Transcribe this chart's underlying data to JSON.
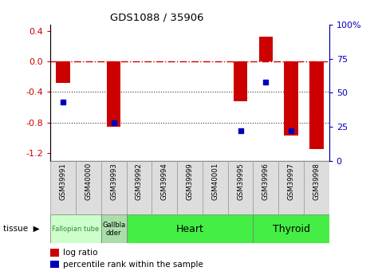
{
  "title": "GDS1088 / 35906",
  "samples": [
    "GSM39991",
    "GSM40000",
    "GSM39993",
    "GSM39992",
    "GSM39994",
    "GSM39999",
    "GSM40001",
    "GSM39995",
    "GSM39996",
    "GSM39997",
    "GSM39998"
  ],
  "log_ratios": [
    -0.28,
    0.0,
    -0.85,
    0.0,
    0.0,
    0.0,
    0.0,
    -0.52,
    0.32,
    -0.97,
    -1.15
  ],
  "percentile_ranks": [
    43,
    null,
    28,
    null,
    null,
    null,
    null,
    22,
    58,
    22,
    null
  ],
  "tissues": [
    {
      "label": "Fallopian tube",
      "start": 0,
      "end": 2,
      "color": "#ccffcc",
      "font_color": "#338833",
      "font_size": 6
    },
    {
      "label": "Gallbla\ndder",
      "start": 2,
      "end": 3,
      "color": "#aaddaa",
      "font_color": "#000000",
      "font_size": 6
    },
    {
      "label": "Heart",
      "start": 3,
      "end": 8,
      "color": "#44ee44",
      "font_color": "#000000",
      "font_size": 9
    },
    {
      "label": "Thyroid",
      "start": 8,
      "end": 11,
      "color": "#44ee44",
      "font_color": "#000000",
      "font_size": 9
    }
  ],
  "ylim": [
    -1.3,
    0.48
  ],
  "y_left_ticks": [
    0.4,
    0.0,
    -0.4,
    -0.8,
    -1.2
  ],
  "y_right_pct": [
    100,
    75,
    50,
    25,
    0
  ],
  "bar_color": "#cc0000",
  "dot_color": "#0000bb",
  "hline_color": "#cc0000",
  "dotted_color": "#333333",
  "bg_color": "#ffffff",
  "sample_box_color": "#dddddd",
  "sample_box_edge": "#999999"
}
